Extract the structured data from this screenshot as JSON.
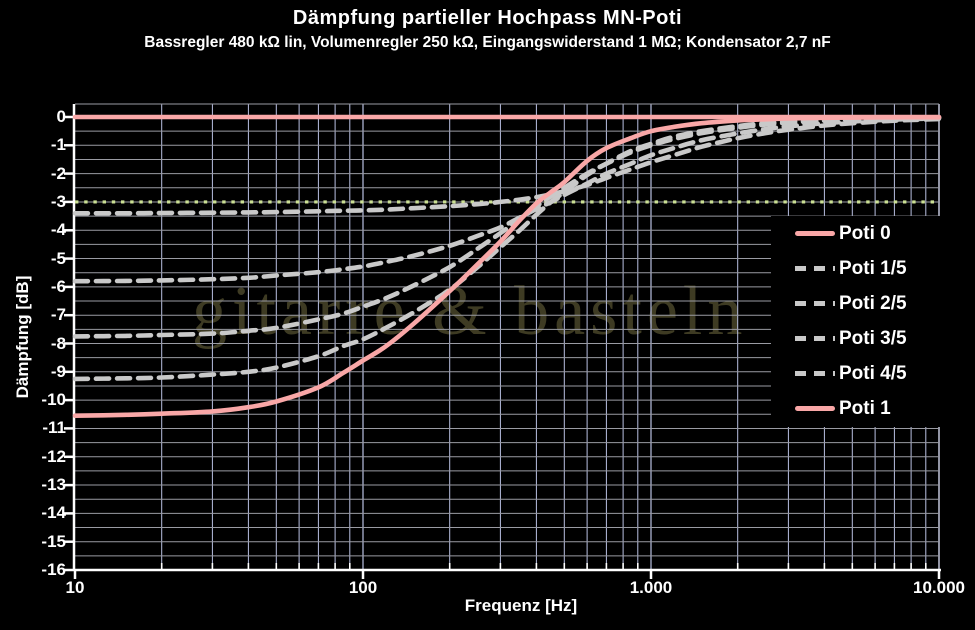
{
  "header": {
    "title": "Dämpfung partieller Hochpass MN-Poti",
    "subtitle": "Bassregler 480 kΩ lin, Volumenregler 250 kΩ, Eingangswiderstand 1 MΩ; Kondensator 2,7 nF"
  },
  "watermark": "gitarre & basteln",
  "colors": {
    "background": "#000000",
    "text": "#ffffff",
    "pink_series": "#f9a7a7",
    "dashed_series": "#c9c9c9",
    "reference_dotted": "#cbe093",
    "grid_vertical": "#b9c0e2",
    "grid_horizontal": "#9a9ba3",
    "axis_spine": "#ffffff",
    "watermark": "#3e3b23"
  },
  "chart_data": {
    "type": "line",
    "title": "Dämpfung partieller Hochpass MN-Poti",
    "xlabel": "Frequenz [Hz]",
    "ylabel": "Dämpfung [dB]",
    "x_scale": "log",
    "xlim": [
      10,
      10000
    ],
    "ylim": [
      -16,
      0.46
    ],
    "y_major_step": 1,
    "y_minor_step": 0.5,
    "grid": "on",
    "x_ticks": [
      {
        "f": 10,
        "label": "10"
      },
      {
        "f": 100,
        "label": "100"
      },
      {
        "f": 1000,
        "label": "1.000"
      },
      {
        "f": 10000,
        "label": "10.000"
      }
    ],
    "y_ticks": [
      "0",
      "-1",
      "-2",
      "-3",
      "-4",
      "-5",
      "-6",
      "-7",
      "-8",
      "-9",
      "-10",
      "-11",
      "-12",
      "-13",
      "-14",
      "-15",
      "-16"
    ],
    "reference_line": {
      "value_db": -3,
      "style": "dotted"
    },
    "legend_position": "right",
    "frequencies_hz": [
      10,
      15,
      20,
      30,
      40,
      50,
      70,
      85,
      100,
      120,
      150,
      200,
      250,
      300,
      350,
      400,
      450,
      500,
      600,
      700,
      850,
      1000,
      1200,
      1500,
      2000,
      2500,
      3000,
      4000,
      5000,
      7000,
      10000
    ],
    "series": [
      {
        "name": "Poti 0",
        "style": "solid",
        "color": "pink",
        "values_db": [
          0,
          0,
          0,
          0,
          0,
          0,
          0,
          0,
          0,
          0,
          0,
          0,
          0,
          0,
          0,
          0,
          0,
          0,
          0,
          0,
          0,
          0,
          0,
          0,
          0,
          0,
          0,
          0,
          0,
          0,
          0
        ]
      },
      {
        "name": "Poti 1/5",
        "style": "dashed",
        "color": "gray",
        "values_db": [
          -3.4,
          -3.4,
          -3.39,
          -3.38,
          -3.37,
          -3.36,
          -3.33,
          -3.31,
          -3.3,
          -3.27,
          -3.22,
          -3.15,
          -3.08,
          -3.0,
          -2.92,
          -2.83,
          -2.73,
          -2.62,
          -2.4,
          -2.15,
          -1.85,
          -1.6,
          -1.35,
          -1.05,
          -0.75,
          -0.57,
          -0.45,
          -0.3,
          -0.22,
          -0.13,
          -0.07
        ]
      },
      {
        "name": "Poti 2/5",
        "style": "dashed",
        "color": "gray",
        "values_db": [
          -5.8,
          -5.79,
          -5.77,
          -5.73,
          -5.68,
          -5.6,
          -5.48,
          -5.38,
          -5.28,
          -5.12,
          -4.9,
          -4.55,
          -4.2,
          -3.9,
          -3.55,
          -3.25,
          -3.0,
          -2.75,
          -2.35,
          -2.0,
          -1.65,
          -1.35,
          -1.1,
          -0.82,
          -0.58,
          -0.43,
          -0.33,
          -0.22,
          -0.16,
          -0.09,
          -0.05
        ]
      },
      {
        "name": "Poti 3/5",
        "style": "dashed",
        "color": "gray",
        "values_db": [
          -7.75,
          -7.73,
          -7.7,
          -7.65,
          -7.55,
          -7.45,
          -7.15,
          -6.95,
          -6.7,
          -6.4,
          -5.95,
          -5.3,
          -4.65,
          -4.1,
          -3.6,
          -3.15,
          -2.8,
          -2.5,
          -2.0,
          -1.65,
          -1.25,
          -1.0,
          -0.78,
          -0.57,
          -0.38,
          -0.27,
          -0.2,
          -0.13,
          -0.09,
          -0.05,
          -0.03
        ]
      },
      {
        "name": "Poti 4/5",
        "style": "dashed",
        "color": "gray",
        "values_db": [
          -9.25,
          -9.23,
          -9.2,
          -9.1,
          -9.0,
          -8.85,
          -8.45,
          -8.1,
          -7.85,
          -7.45,
          -6.9,
          -6.1,
          -5.3,
          -4.6,
          -4.0,
          -3.45,
          -3.0,
          -2.65,
          -2.05,
          -1.65,
          -1.2,
          -0.95,
          -0.7,
          -0.5,
          -0.32,
          -0.22,
          -0.16,
          -0.1,
          -0.07,
          -0.04,
          -0.02
        ]
      },
      {
        "name": "Poti 1",
        "style": "solid",
        "color": "pink",
        "values_db": [
          -10.55,
          -10.52,
          -10.48,
          -10.4,
          -10.25,
          -10.05,
          -9.55,
          -9.05,
          -8.6,
          -8.1,
          -7.3,
          -6.15,
          -5.2,
          -4.4,
          -3.65,
          -3.05,
          -2.65,
          -2.3,
          -1.55,
          -1.1,
          -0.75,
          -0.5,
          -0.35,
          -0.22,
          -0.12,
          -0.08,
          -0.05,
          -0.03,
          -0.02,
          -0.01,
          -0.01
        ]
      }
    ]
  }
}
